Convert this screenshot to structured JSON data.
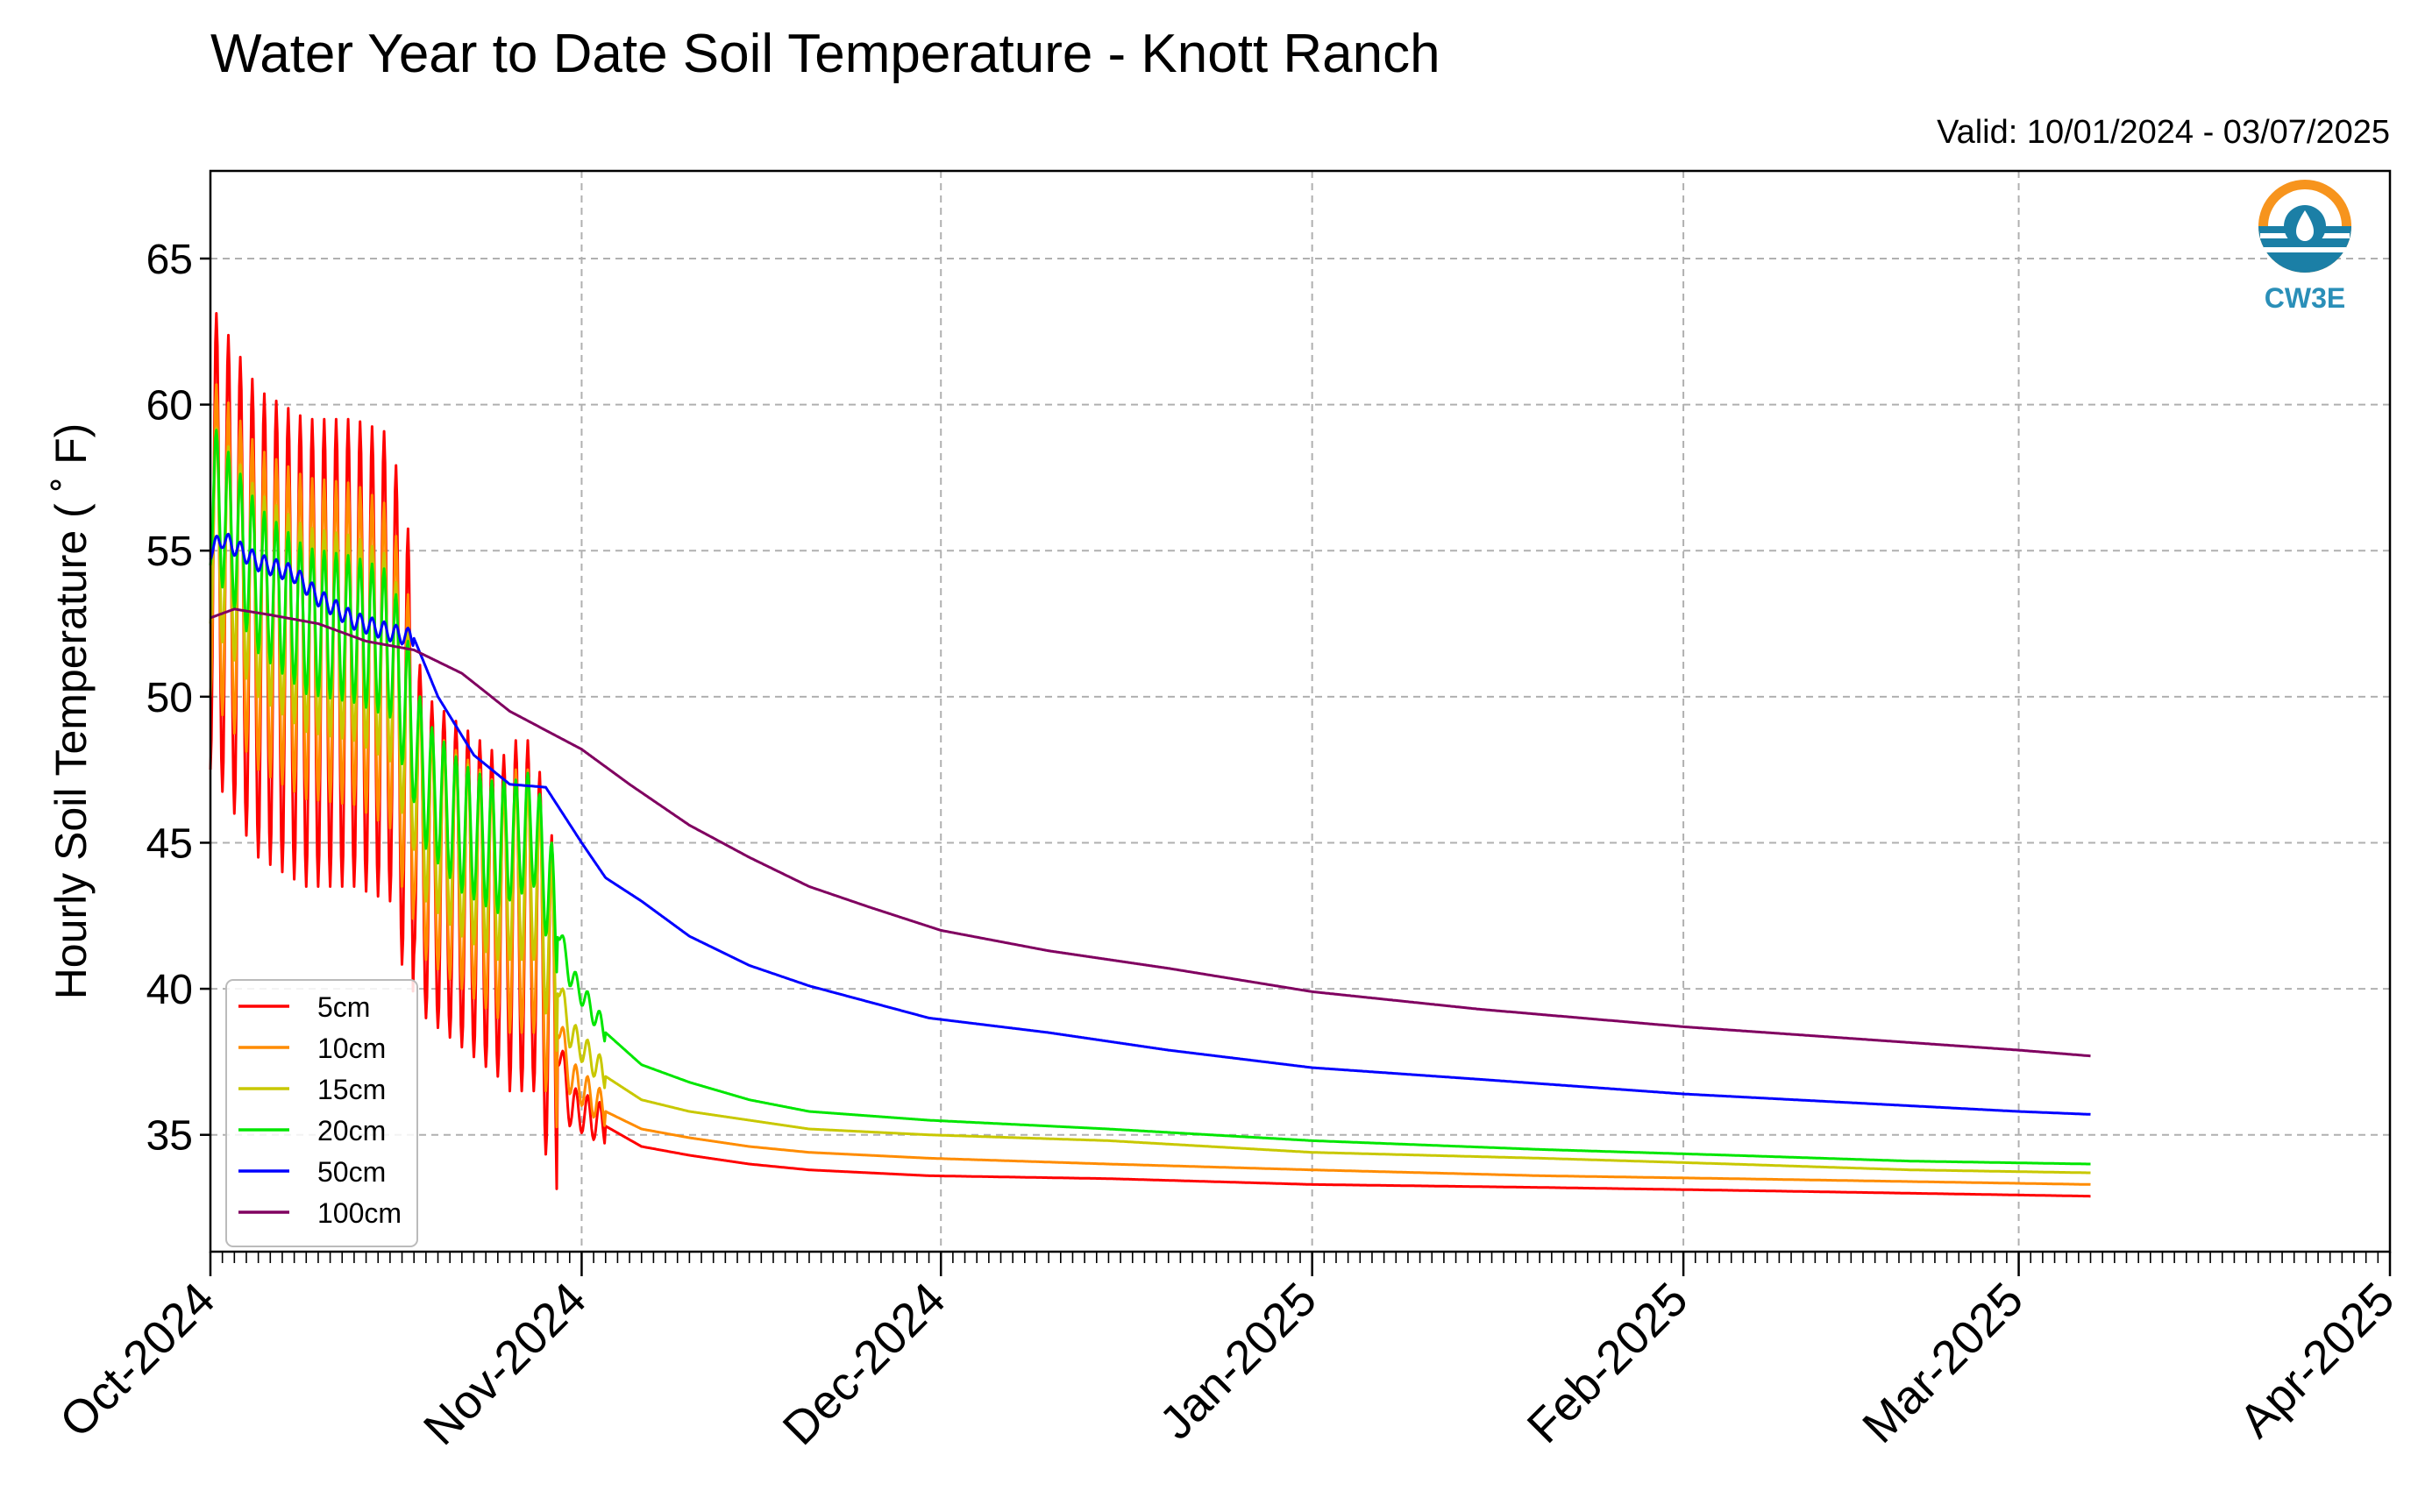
{
  "chart_data": {
    "type": "line",
    "title": "Water Year to Date Soil Temperature - Knott Ranch",
    "subtitle": "Valid: 10/01/2024 - 03/07/2025",
    "ylabel": "Hourly Soil Temperature ( ˚ F)",
    "xlabel": "",
    "x_range": [
      "2024-10-01",
      "2025-04-01"
    ],
    "ylim": [
      31,
      68
    ],
    "y_ticks": [
      35,
      40,
      45,
      50,
      55,
      60,
      65
    ],
    "x_ticks": [
      {
        "date": "2024-10-01",
        "label": "Oct-2024"
      },
      {
        "date": "2024-11-01",
        "label": "Nov-2024"
      },
      {
        "date": "2024-12-01",
        "label": "Dec-2024"
      },
      {
        "date": "2025-01-01",
        "label": "Jan-2025"
      },
      {
        "date": "2025-02-01",
        "label": "Feb-2025"
      },
      {
        "date": "2025-03-01",
        "label": "Mar-2025"
      },
      {
        "date": "2025-04-01",
        "label": "Apr-2025"
      }
    ],
    "grid": true,
    "legend_position": "lower-left",
    "logo_text": "CW3E",
    "series": [
      {
        "name": "5cm",
        "color": "#ff0000",
        "points": [
          [
            "2024-10-01",
            55.5
          ],
          [
            "2024-10-05",
            52.5
          ],
          [
            "2024-10-09",
            51.5
          ],
          [
            "2024-10-13",
            51.5
          ],
          [
            "2024-10-16",
            51.0
          ],
          [
            "2024-10-19",
            44.5
          ],
          [
            "2024-10-22",
            43.5
          ],
          [
            "2024-10-25",
            42.5
          ],
          [
            "2024-10-28",
            42.5
          ],
          [
            "2024-10-31",
            36.0
          ],
          [
            "2024-11-03",
            35.3
          ],
          [
            "2024-11-06",
            34.6
          ],
          [
            "2024-11-10",
            34.3
          ],
          [
            "2024-11-15",
            34.0
          ],
          [
            "2024-11-20",
            33.8
          ],
          [
            "2024-11-30",
            33.6
          ],
          [
            "2024-12-15",
            33.5
          ],
          [
            "2025-01-01",
            33.3
          ],
          [
            "2025-01-20",
            33.2
          ],
          [
            "2025-02-05",
            33.1
          ],
          [
            "2025-02-20",
            33.0
          ],
          [
            "2025-03-07",
            32.9
          ]
        ],
        "osc": [
          {
            "from": "2024-10-01",
            "to": "2024-10-18",
            "amp": 8.0
          },
          {
            "from": "2024-10-18",
            "to": "2024-10-26",
            "amp": 5.5
          },
          {
            "from": "2024-10-26",
            "to": "2024-10-30",
            "amp": 6.0
          },
          {
            "from": "2024-10-30",
            "to": "2024-11-03",
            "amp": 0.7
          }
        ]
      },
      {
        "name": "10cm",
        "color": "#ff8c00",
        "points": [
          [
            "2024-10-01",
            55.5
          ],
          [
            "2024-10-05",
            53.0
          ],
          [
            "2024-10-09",
            52.0
          ],
          [
            "2024-10-13",
            51.8
          ],
          [
            "2024-10-16",
            51.0
          ],
          [
            "2024-10-19",
            45.0
          ],
          [
            "2024-10-22",
            44.0
          ],
          [
            "2024-10-25",
            43.0
          ],
          [
            "2024-10-28",
            43.0
          ],
          [
            "2024-10-31",
            37.0
          ],
          [
            "2024-11-03",
            35.8
          ],
          [
            "2024-11-06",
            35.2
          ],
          [
            "2024-11-10",
            34.9
          ],
          [
            "2024-11-15",
            34.6
          ],
          [
            "2024-11-20",
            34.4
          ],
          [
            "2024-11-30",
            34.2
          ],
          [
            "2024-12-15",
            34.0
          ],
          [
            "2025-01-01",
            33.8
          ],
          [
            "2025-01-20",
            33.6
          ],
          [
            "2025-02-05",
            33.5
          ],
          [
            "2025-02-20",
            33.4
          ],
          [
            "2025-03-07",
            33.3
          ]
        ],
        "osc": [
          {
            "from": "2024-10-01",
            "to": "2024-10-18",
            "amp": 5.5
          },
          {
            "from": "2024-10-18",
            "to": "2024-10-26",
            "amp": 4.0
          },
          {
            "from": "2024-10-26",
            "to": "2024-10-30",
            "amp": 4.5
          },
          {
            "from": "2024-10-30",
            "to": "2024-11-03",
            "amp": 0.6
          }
        ]
      },
      {
        "name": "15cm",
        "color": "#c8c800",
        "points": [
          [
            "2024-10-01",
            56.0
          ],
          [
            "2024-10-05",
            53.5
          ],
          [
            "2024-10-09",
            52.3
          ],
          [
            "2024-10-13",
            52.0
          ],
          [
            "2024-10-16",
            51.3
          ],
          [
            "2024-10-19",
            46.0
          ],
          [
            "2024-10-22",
            44.8
          ],
          [
            "2024-10-25",
            44.0
          ],
          [
            "2024-10-28",
            44.0
          ],
          [
            "2024-10-31",
            38.5
          ],
          [
            "2024-11-03",
            37.0
          ],
          [
            "2024-11-06",
            36.2
          ],
          [
            "2024-11-10",
            35.8
          ],
          [
            "2024-11-15",
            35.5
          ],
          [
            "2024-11-20",
            35.2
          ],
          [
            "2024-11-30",
            35.0
          ],
          [
            "2024-12-15",
            34.8
          ],
          [
            "2025-01-01",
            34.4
          ],
          [
            "2025-01-20",
            34.2
          ],
          [
            "2025-02-05",
            34.0
          ],
          [
            "2025-02-20",
            33.8
          ],
          [
            "2025-03-07",
            33.7
          ]
        ],
        "osc": [
          {
            "from": "2024-10-01",
            "to": "2024-10-18",
            "amp": 3.5
          },
          {
            "from": "2024-10-18",
            "to": "2024-10-26",
            "amp": 3.0
          },
          {
            "from": "2024-10-26",
            "to": "2024-10-30",
            "amp": 3.0
          },
          {
            "from": "2024-10-30",
            "to": "2024-11-03",
            "amp": 0.5
          }
        ]
      },
      {
        "name": "20cm",
        "color": "#00e600",
        "points": [
          [
            "2024-10-01",
            57.0
          ],
          [
            "2024-10-05",
            54.0
          ],
          [
            "2024-10-09",
            52.6
          ],
          [
            "2024-10-13",
            52.3
          ],
          [
            "2024-10-16",
            51.8
          ],
          [
            "2024-10-19",
            47.0
          ],
          [
            "2024-10-22",
            45.5
          ],
          [
            "2024-10-25",
            44.8
          ],
          [
            "2024-10-28",
            45.5
          ],
          [
            "2024-10-31",
            40.5
          ],
          [
            "2024-11-03",
            38.5
          ],
          [
            "2024-11-06",
            37.4
          ],
          [
            "2024-11-10",
            36.8
          ],
          [
            "2024-11-15",
            36.2
          ],
          [
            "2024-11-20",
            35.8
          ],
          [
            "2024-11-30",
            35.5
          ],
          [
            "2024-12-15",
            35.2
          ],
          [
            "2025-01-01",
            34.8
          ],
          [
            "2025-01-20",
            34.5
          ],
          [
            "2025-02-05",
            34.3
          ],
          [
            "2025-02-20",
            34.1
          ],
          [
            "2025-03-07",
            34.0
          ]
        ],
        "osc": [
          {
            "from": "2024-10-01",
            "to": "2024-10-18",
            "amp": 2.5
          },
          {
            "from": "2024-10-18",
            "to": "2024-10-26",
            "amp": 2.2
          },
          {
            "from": "2024-10-26",
            "to": "2024-10-30",
            "amp": 2.0
          },
          {
            "from": "2024-10-30",
            "to": "2024-11-03",
            "amp": 0.4
          }
        ]
      },
      {
        "name": "50cm",
        "color": "#0000ff",
        "points": [
          [
            "2024-10-01",
            55.0
          ],
          [
            "2024-10-02",
            55.4
          ],
          [
            "2024-10-05",
            54.6
          ],
          [
            "2024-10-08",
            54.2
          ],
          [
            "2024-10-10",
            53.4
          ],
          [
            "2024-10-13",
            52.6
          ],
          [
            "2024-10-16",
            52.2
          ],
          [
            "2024-10-18",
            52.0
          ],
          [
            "2024-10-20",
            50.0
          ],
          [
            "2024-10-23",
            48.0
          ],
          [
            "2024-10-26",
            47.0
          ],
          [
            "2024-10-29",
            46.9
          ],
          [
            "2024-11-01",
            45.0
          ],
          [
            "2024-11-03",
            43.8
          ],
          [
            "2024-11-06",
            43.0
          ],
          [
            "2024-11-10",
            41.8
          ],
          [
            "2024-11-15",
            40.8
          ],
          [
            "2024-11-20",
            40.1
          ],
          [
            "2024-11-30",
            39.0
          ],
          [
            "2024-12-10",
            38.5
          ],
          [
            "2024-12-20",
            37.9
          ],
          [
            "2025-01-01",
            37.3
          ],
          [
            "2025-01-15",
            36.9
          ],
          [
            "2025-02-01",
            36.4
          ],
          [
            "2025-02-15",
            36.1
          ],
          [
            "2025-03-01",
            35.8
          ],
          [
            "2025-03-07",
            35.7
          ]
        ],
        "osc": [
          {
            "from": "2024-10-01",
            "to": "2024-10-18",
            "amp": 0.3
          }
        ]
      },
      {
        "name": "100cm",
        "color": "#800060",
        "points": [
          [
            "2024-10-01",
            52.7
          ],
          [
            "2024-10-03",
            53.0
          ],
          [
            "2024-10-06",
            52.8
          ],
          [
            "2024-10-10",
            52.5
          ],
          [
            "2024-10-14",
            51.9
          ],
          [
            "2024-10-18",
            51.6
          ],
          [
            "2024-10-22",
            50.8
          ],
          [
            "2024-10-26",
            49.5
          ],
          [
            "2024-11-01",
            48.2
          ],
          [
            "2024-11-05",
            47.0
          ],
          [
            "2024-11-10",
            45.6
          ],
          [
            "2024-11-15",
            44.5
          ],
          [
            "2024-11-20",
            43.5
          ],
          [
            "2024-11-25",
            42.8
          ],
          [
            "2024-12-01",
            42.0
          ],
          [
            "2024-12-10",
            41.3
          ],
          [
            "2024-12-20",
            40.7
          ],
          [
            "2025-01-01",
            39.9
          ],
          [
            "2025-01-15",
            39.3
          ],
          [
            "2025-02-01",
            38.7
          ],
          [
            "2025-02-15",
            38.3
          ],
          [
            "2025-03-01",
            37.9
          ],
          [
            "2025-03-07",
            37.7
          ]
        ],
        "osc": []
      }
    ]
  }
}
